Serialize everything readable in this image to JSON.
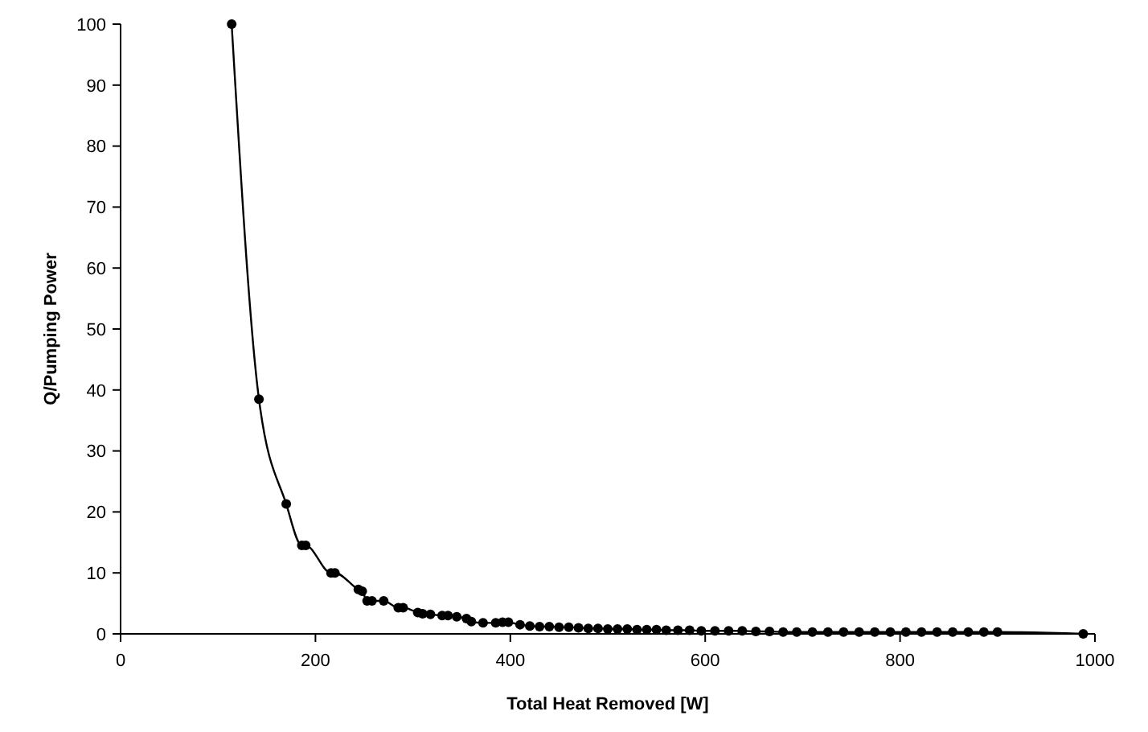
{
  "chart_data": {
    "type": "line",
    "xlabel": "Total Heat Removed [W]",
    "ylabel": "Q/Pumping Power",
    "xlim": [
      0,
      1000
    ],
    "xticks": [
      0,
      200,
      400,
      600,
      800,
      1000
    ],
    "ylim": [
      0,
      100
    ],
    "yticks": [
      0,
      10,
      20,
      30,
      40,
      50,
      60,
      70,
      80,
      90,
      100
    ],
    "grid": false,
    "marker": "circle",
    "line_style": "solid",
    "series": [
      {
        "color": "#000000",
        "x": [
          114,
          142,
          170,
          186,
          190,
          216,
          220,
          244,
          248,
          253,
          258,
          270,
          285,
          290,
          305,
          310,
          318,
          330,
          336,
          345,
          355,
          360,
          372,
          385,
          392,
          398,
          410,
          420,
          430,
          440,
          450,
          460,
          470,
          480,
          490,
          500,
          510,
          520,
          530,
          540,
          550,
          560,
          572,
          584,
          596,
          610,
          624,
          638,
          652,
          666,
          680,
          694,
          710,
          726,
          742,
          758,
          774,
          790,
          806,
          822,
          838,
          854,
          870,
          886,
          900,
          988
        ],
        "values": [
          100,
          38.5,
          21.3,
          14.5,
          14.5,
          10,
          10,
          7.3,
          7,
          5.4,
          5.4,
          5.4,
          4.3,
          4.3,
          3.5,
          3.3,
          3.2,
          3,
          3,
          2.8,
          2.5,
          2,
          1.8,
          1.8,
          1.9,
          1.9,
          1.5,
          1.3,
          1.2,
          1.2,
          1.1,
          1.1,
          1,
          0.9,
          0.9,
          0.8,
          0.8,
          0.8,
          0.7,
          0.7,
          0.7,
          0.6,
          0.6,
          0.6,
          0.5,
          0.5,
          0.5,
          0.5,
          0.4,
          0.4,
          0.3,
          0.3,
          0.3,
          0.3,
          0.3,
          0.3,
          0.3,
          0.3,
          0.3,
          0.3,
          0.3,
          0.3,
          0.3,
          0.3,
          0.3,
          0
        ]
      }
    ]
  }
}
